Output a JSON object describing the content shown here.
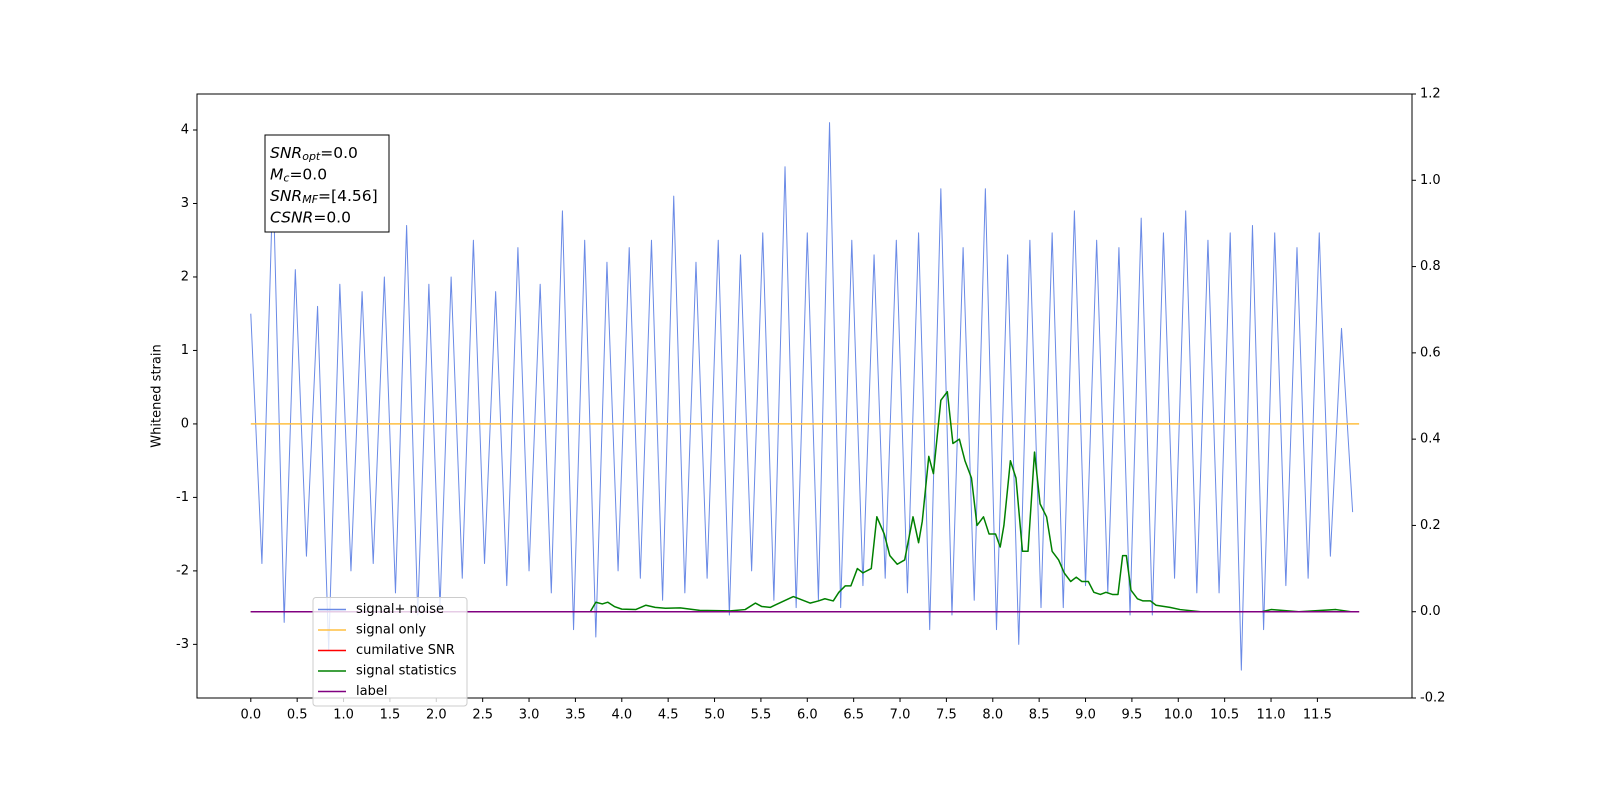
{
  "chart_data": {
    "type": "line",
    "ylabel": "Whitened strain",
    "xlim": [
      -0.58,
      12.52
    ],
    "ylim": [
      -3.73,
      4.49
    ],
    "y2lim": [
      -0.2,
      1.2
    ],
    "xticks": [
      {
        "value": 0,
        "label": "0.0"
      },
      0.5,
      {
        "value": 1,
        "label": "1.0"
      },
      1.5,
      {
        "value": 2,
        "label": "2.0"
      },
      2.5,
      {
        "value": 3,
        "label": "3.0"
      },
      3.5,
      {
        "value": 4,
        "label": "4.0"
      },
      4.5,
      {
        "value": 5,
        "label": "5.0"
      },
      5.5,
      {
        "value": 6,
        "label": "6.0"
      },
      6.5,
      {
        "value": 7,
        "label": "7.0"
      },
      7.5,
      {
        "value": 8,
        "label": "8.0"
      },
      8.5,
      {
        "value": 9,
        "label": "9.0"
      },
      9.5,
      {
        "value": 10,
        "label": "10.0"
      },
      10.5,
      {
        "value": 11,
        "label": "11.0"
      },
      11.5
    ],
    "yticks": [
      -3,
      -2,
      -1,
      0,
      1,
      2,
      3,
      4
    ],
    "y2ticks": [
      -0.2,
      {
        "value": 0,
        "label": "0.0"
      },
      0.2,
      0.4,
      0.6,
      0.8,
      {
        "value": 1,
        "label": "1.0"
      },
      1.2
    ],
    "legend": {
      "loc": "lower left"
    },
    "annotation": [
      {
        "base": "SNR",
        "sub": "opt",
        "rest": "=0.0"
      },
      {
        "base": "M",
        "sub": "c",
        "rest": "=0.0"
      },
      {
        "base": "SNR",
        "sub": "MF",
        "rest": "=[4.56]"
      },
      {
        "base": "CSNR",
        "rest": "=0.0"
      }
    ],
    "series": [
      {
        "name": "signal+ noise",
        "color": "#6a8ae6",
        "axis": "y",
        "x": [
          0,
          0.12,
          0.24,
          0.36,
          0.48,
          0.6,
          0.72,
          0.84,
          0.96,
          1.08,
          1.2,
          1.32,
          1.44,
          1.56,
          1.68,
          1.8,
          1.92,
          2.04,
          2.16,
          2.28,
          2.4,
          2.52,
          2.64,
          2.76,
          2.88,
          3,
          3.12,
          3.24,
          3.36,
          3.48,
          3.6,
          3.72,
          3.84,
          3.96,
          4.08,
          4.2,
          4.32,
          4.44,
          4.56,
          4.68,
          4.8,
          4.92,
          5.04,
          5.16,
          5.28,
          5.4,
          5.52,
          5.64,
          5.76,
          5.88,
          6,
          6.12,
          6.24,
          6.36,
          6.48,
          6.6,
          6.72,
          6.84,
          6.96,
          7.08,
          7.2,
          7.32,
          7.44,
          7.56,
          7.68,
          7.8,
          7.92,
          8.04,
          8.16,
          8.28,
          8.4,
          8.52,
          8.64,
          8.76,
          8.88,
          9,
          9.12,
          9.24,
          9.36,
          9.48,
          9.6,
          9.72,
          9.84,
          9.96,
          10.08,
          10.2,
          10.32,
          10.44,
          10.56,
          10.68,
          10.8,
          10.92,
          11.04,
          11.16,
          11.28,
          11.4,
          11.52,
          11.64,
          11.76,
          11.88
        ],
        "values": [
          1.5,
          -1.9,
          3.35,
          -2.7,
          2.1,
          -1.8,
          1.6,
          -3.08,
          1.9,
          -2.0,
          1.8,
          -1.9,
          2.0,
          -2.3,
          2.7,
          -2.6,
          1.9,
          -2.5,
          2.0,
          -2.1,
          2.5,
          -1.9,
          1.8,
          -2.2,
          2.4,
          -2.0,
          1.9,
          -2.3,
          2.9,
          -2.8,
          2.5,
          -2.9,
          2.2,
          -2.0,
          2.4,
          -2.1,
          2.5,
          -2.4,
          3.1,
          -2.3,
          2.2,
          -2.1,
          2.5,
          -2.6,
          2.3,
          -2.0,
          2.6,
          -2.4,
          3.5,
          -2.5,
          2.6,
          -2.4,
          4.1,
          -2.5,
          2.5,
          -2.2,
          2.3,
          -2.1,
          2.5,
          -2.3,
          2.6,
          -2.8,
          3.2,
          -2.6,
          2.4,
          -2.4,
          3.2,
          -2.8,
          2.3,
          -3.0,
          2.5,
          -2.5,
          2.6,
          -2.5,
          2.9,
          -2.2,
          2.5,
          -2.3,
          2.4,
          -2.6,
          2.8,
          -2.6,
          2.6,
          -2.1,
          2.9,
          -2.3,
          2.5,
          -2.3,
          2.6,
          -3.35,
          2.7,
          -2.8,
          2.6,
          -2.2,
          2.4,
          -2.1,
          2.6,
          -1.8,
          1.3,
          -1.2
        ]
      },
      {
        "name": "signal only",
        "color": "#ffbf40",
        "axis": "y",
        "x": [
          0,
          11.95
        ],
        "values": [
          0,
          0
        ]
      },
      {
        "name": "cumilative SNR",
        "color": "#ff0000",
        "axis": "y2",
        "x": [
          0,
          11.95
        ],
        "values": [
          0,
          0
        ]
      },
      {
        "name": "signal statistics",
        "color": "#008000",
        "axis": "y2",
        "x": [
          0,
          3.66,
          3.72,
          3.79,
          3.85,
          3.92,
          4.0,
          4.15,
          4.26,
          4.36,
          4.47,
          4.63,
          4.84,
          5.17,
          5.33,
          5.44,
          5.51,
          5.6,
          5.65,
          5.85,
          6.03,
          6.12,
          6.19,
          6.28,
          6.34,
          6.41,
          6.47,
          6.54,
          6.6,
          6.69,
          6.75,
          6.83,
          6.89,
          6.97,
          7.05,
          7.14,
          7.2,
          7.24,
          7.31,
          7.36,
          7.44,
          7.51,
          7.57,
          7.64,
          7.7,
          7.77,
          7.83,
          7.9,
          7.96,
          8.03,
          8.08,
          8.12,
          8.19,
          8.25,
          8.32,
          8.38,
          8.45,
          8.51,
          8.58,
          8.64,
          8.71,
          8.77,
          8.84,
          8.9,
          8.96,
          9.03,
          9.09,
          9.16,
          9.22,
          9.29,
          9.35,
          9.4,
          9.44,
          9.49,
          9.56,
          9.62,
          9.7,
          9.76,
          9.91,
          10.02,
          10.24,
          10.9,
          11.0,
          11.3,
          11.7,
          11.86
        ],
        "values": [
          0,
          0,
          0.022,
          0.018,
          0.022,
          0.012,
          0.006,
          0.005,
          0.015,
          0.01,
          0.008,
          0.009,
          0.003,
          0.002,
          0.005,
          0.02,
          0.012,
          0.01,
          0.015,
          0.035,
          0.02,
          0.025,
          0.03,
          0.025,
          0.045,
          0.06,
          0.06,
          0.1,
          0.09,
          0.1,
          0.22,
          0.18,
          0.13,
          0.11,
          0.12,
          0.22,
          0.16,
          0.21,
          0.36,
          0.32,
          0.49,
          0.51,
          0.39,
          0.4,
          0.35,
          0.31,
          0.2,
          0.22,
          0.18,
          0.18,
          0.15,
          0.2,
          0.35,
          0.31,
          0.14,
          0.14,
          0.37,
          0.25,
          0.22,
          0.14,
          0.12,
          0.09,
          0.07,
          0.08,
          0.07,
          0.07,
          0.045,
          0.04,
          0.045,
          0.04,
          0.04,
          0.13,
          0.13,
          0.05,
          0.03,
          0.025,
          0.025,
          0.015,
          0.01,
          0.005,
          0,
          0,
          0.005,
          0,
          0.005,
          0
        ]
      },
      {
        "name": "label",
        "color": "#800080",
        "axis": "y2",
        "x": [
          0,
          11.95
        ],
        "values": [
          0,
          0
        ]
      }
    ]
  }
}
